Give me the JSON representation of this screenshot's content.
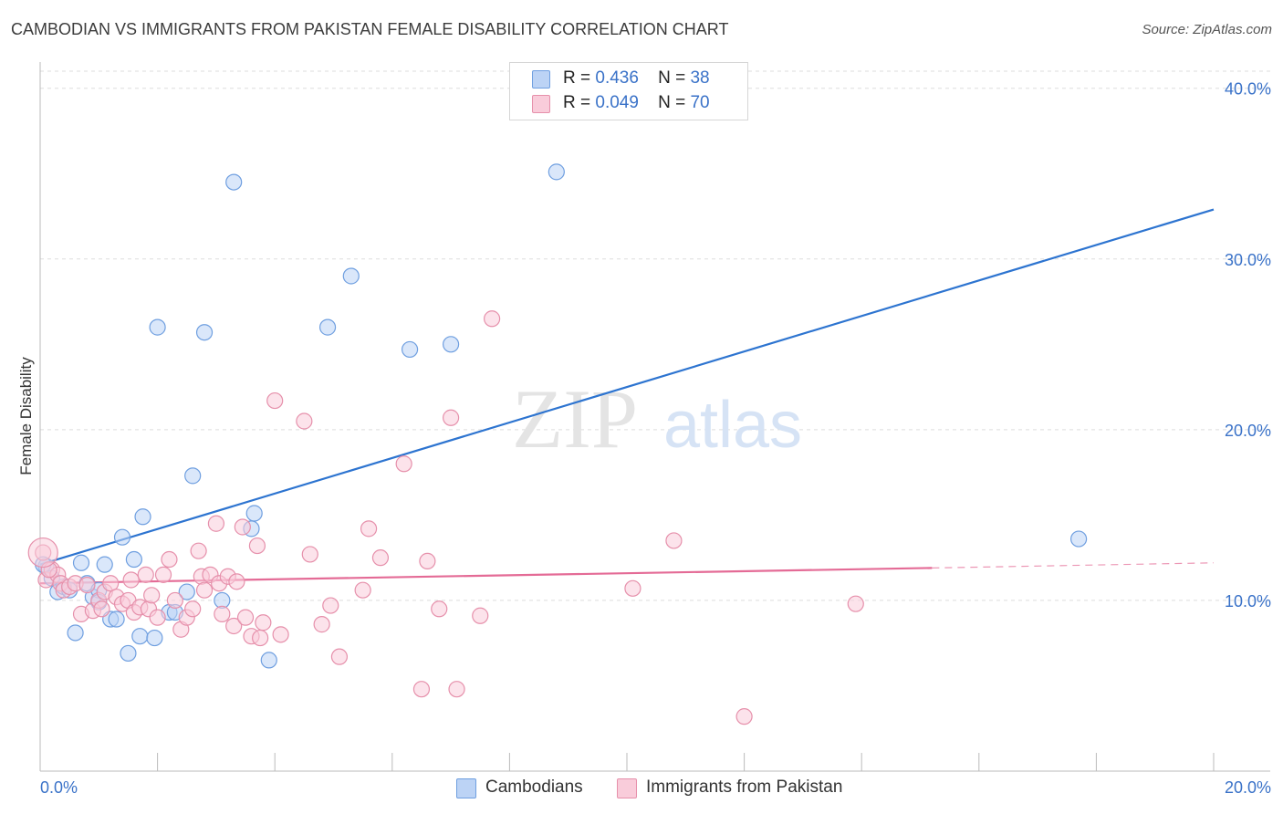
{
  "title": "CAMBODIAN VS IMMIGRANTS FROM PAKISTAN FEMALE DISABILITY CORRELATION CHART",
  "source": "Source: ZipAtlas.com",
  "watermark": {
    "zip": "ZIP",
    "atlas": "atlas"
  },
  "colors": {
    "blue": "#6f9fe0",
    "blue_fill": "#bcd3f5",
    "blue_line": "#2d74d0",
    "pink": "#e690ab",
    "pink_fill": "#f9ccda",
    "pink_line": "#e46b96",
    "axis_label": "#3a72c8",
    "grid": "#dddddd"
  },
  "legend": [
    {
      "r_label": "R =",
      "r_value": "0.436",
      "n_label": "N =",
      "n_value": "38"
    },
    {
      "r_label": "R =",
      "r_value": "0.049",
      "n_label": "N =",
      "n_value": "70"
    }
  ],
  "bottom_legend": [
    "Cambodians",
    "Immigrants from Pakistan"
  ],
  "chart_data": {
    "type": "scatter",
    "title": "CAMBODIAN VS IMMIGRANTS FROM PAKISTAN FEMALE DISABILITY CORRELATION CHART",
    "xlabel": "",
    "ylabel": "Female Disability",
    "xlim": [
      0,
      20
    ],
    "ylim": [
      0,
      41
    ],
    "x_ticks_labels": [
      "0.0%",
      "20.0%"
    ],
    "y_ticks": [
      10,
      20,
      30,
      40
    ],
    "y_tick_labels": [
      "10.0%",
      "20.0%",
      "30.0%",
      "40.0%"
    ],
    "grid": true,
    "series": [
      {
        "name": "Cambodians",
        "color": "#6f9fe0",
        "points": [
          [
            0.1,
            12.0
          ],
          [
            0.2,
            11.3
          ],
          [
            0.3,
            10.5
          ],
          [
            0.4,
            10.8
          ],
          [
            0.5,
            10.6
          ],
          [
            0.6,
            8.1
          ],
          [
            0.7,
            12.2
          ],
          [
            0.8,
            11.0
          ],
          [
            0.9,
            10.2
          ],
          [
            1.0,
            10.6
          ],
          [
            1.0,
            9.9
          ],
          [
            1.1,
            12.1
          ],
          [
            1.2,
            8.9
          ],
          [
            1.3,
            8.9
          ],
          [
            1.4,
            13.7
          ],
          [
            1.5,
            6.9
          ],
          [
            1.6,
            12.4
          ],
          [
            1.7,
            7.9
          ],
          [
            1.75,
            14.9
          ],
          [
            1.95,
            7.8
          ],
          [
            2.0,
            26.0
          ],
          [
            2.2,
            9.3
          ],
          [
            2.3,
            9.3
          ],
          [
            2.5,
            10.5
          ],
          [
            2.6,
            17.3
          ],
          [
            2.8,
            25.7
          ],
          [
            3.1,
            10.0
          ],
          [
            3.3,
            34.5
          ],
          [
            3.6,
            14.2
          ],
          [
            3.65,
            15.1
          ],
          [
            3.9,
            6.5
          ],
          [
            4.9,
            26.0
          ],
          [
            5.3,
            29.0
          ],
          [
            6.3,
            24.7
          ],
          [
            7.0,
            25.0
          ],
          [
            8.8,
            35.1
          ],
          [
            17.7,
            13.6
          ],
          [
            0.05,
            12.1
          ]
        ],
        "trend": {
          "x": [
            0.0,
            20.0
          ],
          "y": [
            12.1,
            32.9
          ]
        }
      },
      {
        "name": "Immigrants from Pakistan",
        "color": "#e690ab",
        "points": [
          [
            0.05,
            12.8
          ],
          [
            0.1,
            11.2
          ],
          [
            0.2,
            11.8
          ],
          [
            0.3,
            11.5
          ],
          [
            0.35,
            11.0
          ],
          [
            0.4,
            10.6
          ],
          [
            0.5,
            10.8
          ],
          [
            0.6,
            11.0
          ],
          [
            0.7,
            9.2
          ],
          [
            0.8,
            10.9
          ],
          [
            0.9,
            9.4
          ],
          [
            1.0,
            10.0
          ],
          [
            1.05,
            9.5
          ],
          [
            1.1,
            10.5
          ],
          [
            1.2,
            11.0
          ],
          [
            1.3,
            10.2
          ],
          [
            1.4,
            9.8
          ],
          [
            1.5,
            10.0
          ],
          [
            1.55,
            11.2
          ],
          [
            1.6,
            9.3
          ],
          [
            1.7,
            9.6
          ],
          [
            1.8,
            11.5
          ],
          [
            1.85,
            9.5
          ],
          [
            1.9,
            10.3
          ],
          [
            2.0,
            9.0
          ],
          [
            2.1,
            11.5
          ],
          [
            2.2,
            12.4
          ],
          [
            2.3,
            10.0
          ],
          [
            2.4,
            8.3
          ],
          [
            2.5,
            9.0
          ],
          [
            2.6,
            9.5
          ],
          [
            2.7,
            12.9
          ],
          [
            2.75,
            11.4
          ],
          [
            2.8,
            10.6
          ],
          [
            2.9,
            11.5
          ],
          [
            3.0,
            14.5
          ],
          [
            3.05,
            11.0
          ],
          [
            3.1,
            9.2
          ],
          [
            3.2,
            11.4
          ],
          [
            3.3,
            8.5
          ],
          [
            3.35,
            11.1
          ],
          [
            3.45,
            14.3
          ],
          [
            3.5,
            9.0
          ],
          [
            3.6,
            7.9
          ],
          [
            3.7,
            13.2
          ],
          [
            3.75,
            7.8
          ],
          [
            3.8,
            8.7
          ],
          [
            4.0,
            21.7
          ],
          [
            4.1,
            8.0
          ],
          [
            4.5,
            20.5
          ],
          [
            4.6,
            12.7
          ],
          [
            4.8,
            8.6
          ],
          [
            4.95,
            9.7
          ],
          [
            5.1,
            6.7
          ],
          [
            5.5,
            10.6
          ],
          [
            5.6,
            14.2
          ],
          [
            5.8,
            12.5
          ],
          [
            6.2,
            18.0
          ],
          [
            6.5,
            4.8
          ],
          [
            6.6,
            12.3
          ],
          [
            6.8,
            9.5
          ],
          [
            7.0,
            20.7
          ],
          [
            7.1,
            4.8
          ],
          [
            7.5,
            9.1
          ],
          [
            7.7,
            26.5
          ],
          [
            10.1,
            10.7
          ],
          [
            10.8,
            13.5
          ],
          [
            13.9,
            9.8
          ],
          [
            12.0,
            3.2
          ],
          [
            0.15,
            11.8
          ]
        ],
        "trend": {
          "x": [
            0.0,
            15.2
          ],
          "y": [
            11.0,
            11.9
          ]
        },
        "trend_dashed": {
          "x": [
            15.2,
            20.0
          ],
          "y": [
            11.9,
            12.2
          ]
        }
      }
    ]
  }
}
